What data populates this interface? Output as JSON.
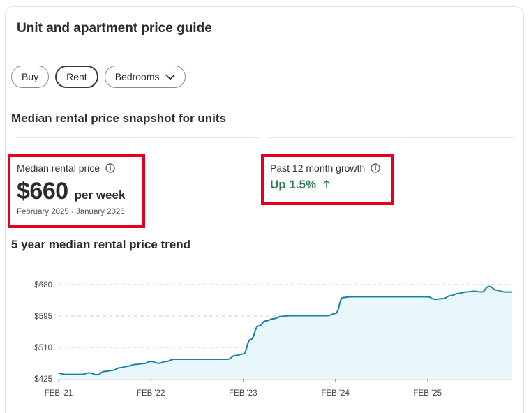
{
  "card": {
    "title": "Unit and apartment price guide"
  },
  "tabs": [
    {
      "label": "Buy",
      "active": false
    },
    {
      "label": "Rent",
      "active": true
    },
    {
      "label": "Bedrooms",
      "active": false
    }
  ],
  "snapshot": {
    "title": "Median rental price snapshot for units",
    "median": {
      "label": "Median rental price",
      "price": "$660",
      "unit": "per week",
      "period": "February 2025 - January 2026"
    },
    "growth": {
      "label": "Past 12 month growth",
      "value": "Up 1.5%"
    }
  },
  "trend": {
    "title": "5 year median rental price trend"
  },
  "colors": {
    "accent_red": "#e4001b",
    "growth_green": "#2e7d4f",
    "line": "#1b7fa6",
    "area": "#e8f7fb"
  },
  "icons": [
    "info-icon",
    "chevron-down-icon",
    "arrow-up-icon"
  ],
  "chart_data": {
    "type": "area",
    "title": "5 year median rental price trend",
    "xlabel": "",
    "ylabel": "",
    "ylim": [
      425,
      680
    ],
    "y_ticks": [
      425,
      510,
      595,
      680
    ],
    "y_tick_labels": [
      "$425",
      "$510",
      "$595",
      "$680"
    ],
    "x_tick_labels": [
      "FEB '21",
      "FEB '22",
      "FEB '23",
      "FEB '24",
      "FEB '25"
    ],
    "x_tick_months": [
      0,
      12,
      24,
      36,
      48
    ],
    "grid": "horizontal dashed",
    "series": [
      {
        "x_months": [
          0,
          1,
          2,
          3,
          4,
          5,
          6,
          7,
          8,
          9,
          10,
          11,
          12,
          13,
          14,
          15,
          16,
          17,
          18,
          19,
          20,
          21,
          22,
          23,
          24,
          25,
          26,
          27,
          28,
          29,
          30,
          31,
          32,
          33,
          34,
          35,
          36,
          37,
          38,
          39,
          40,
          41,
          42,
          43,
          44,
          45,
          46,
          47,
          48,
          49,
          50,
          51,
          52,
          53,
          54,
          55,
          56,
          57,
          58,
          59
        ],
        "values": [
          440,
          437,
          437,
          437,
          441,
          436,
          445,
          448,
          455,
          459,
          464,
          466,
          472,
          467,
          472,
          478,
          478,
          478,
          478,
          478,
          478,
          478,
          478,
          488,
          492,
          532,
          568,
          582,
          588,
          594,
          596,
          596,
          596,
          596,
          596,
          596,
          602,
          645,
          647,
          647,
          647,
          647,
          647,
          647,
          647,
          647,
          647,
          647,
          647,
          640,
          642,
          650,
          656,
          660,
          662,
          660,
          675,
          665,
          660,
          660
        ]
      }
    ]
  }
}
